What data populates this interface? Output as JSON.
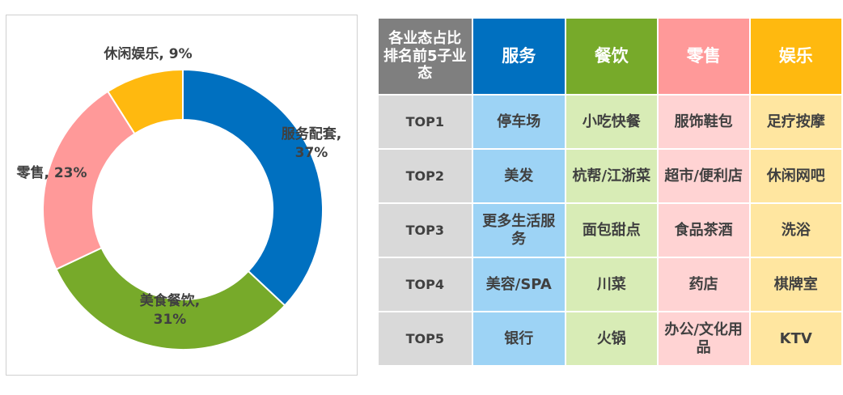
{
  "chart_data": [
    {
      "type": "pie",
      "style": "donut",
      "slices": [
        {
          "label": "服务配套",
          "value": 37,
          "display": "37%",
          "color": "#0070C0"
        },
        {
          "label": "美食餐饮",
          "value": 31,
          "display": "31%",
          "color": "#77AA2A"
        },
        {
          "label": "零售",
          "value": 23,
          "display": "23%",
          "color": "#FF9999"
        },
        {
          "label": "休闲娱乐",
          "value": 9,
          "display": "9%",
          "color": "#FFB90F"
        }
      ]
    },
    {
      "type": "table",
      "corner_header": "各业态占比排名前5子业态",
      "columns": [
        {
          "label": "服务",
          "header_color": "#0070C0",
          "header_text_color": "#FFFFFF",
          "cell_color": "#9DD3F5"
        },
        {
          "label": "餐饮",
          "header_color": "#77AA2A",
          "header_text_color": "#FFFFFF",
          "cell_color": "#D8ECB6"
        },
        {
          "label": "零售",
          "header_color": "#FF9999",
          "header_text_color": "#FFFFFF",
          "cell_color": "#FFD3D3"
        },
        {
          "label": "娱乐",
          "header_color": "#FFB90F",
          "header_text_color": "#FFFFFF",
          "cell_color": "#FFE6A0"
        }
      ],
      "rows": [
        {
          "label": "TOP1",
          "cells": [
            "停车场",
            "小吃快餐",
            "服饰鞋包",
            "足疗按摩"
          ]
        },
        {
          "label": "TOP2",
          "cells": [
            "美发",
            "杭帮/江浙菜",
            "超市/便利店",
            "休闲网吧"
          ]
        },
        {
          "label": "TOP3",
          "cells": [
            "更多生活服务",
            "面包甜点",
            "食品茶酒",
            "洗浴"
          ]
        },
        {
          "label": "TOP4",
          "cells": [
            "美容/SPA",
            "川菜",
            "药店",
            "棋牌室"
          ]
        },
        {
          "label": "TOP5",
          "cells": [
            "银行",
            "火锅",
            "办公/文化用品",
            "KTV"
          ]
        }
      ]
    }
  ]
}
